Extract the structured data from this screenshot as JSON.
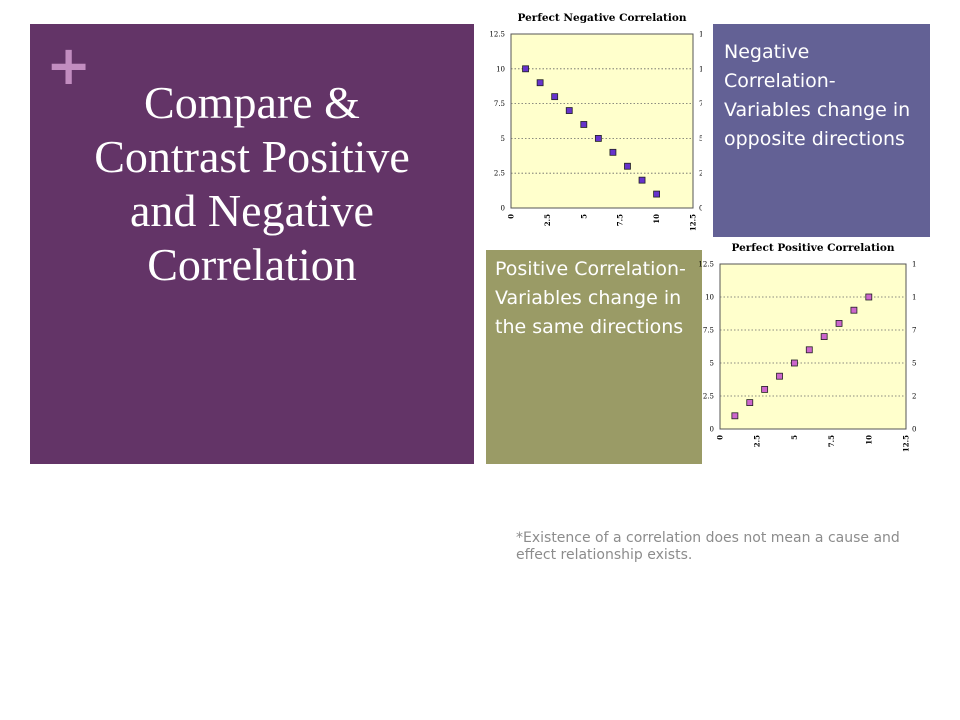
{
  "slide": {
    "plus": "+",
    "title": "Compare & Contrast Positive and Negative Correlation",
    "negative_text": "Negative Correlation- Variables change in opposite directions",
    "positive_text": "Positive Correlation- Variables change in the same directions",
    "footnote": "*Existence of a correlation does not mean a cause and effect relationship exists."
  },
  "colors": {
    "title_panel": "#633467",
    "negative_box": "#636195",
    "positive_box": "#9a9b66",
    "plot_bg": "#ffffcc",
    "marker": "#6633cc",
    "marker_alt": "#cc66cc"
  },
  "chart_data": [
    {
      "type": "scatter",
      "title": "Perfect Negative Correlation",
      "x": [
        1,
        2,
        3,
        4,
        5,
        6,
        7,
        8,
        9,
        10
      ],
      "y": [
        10,
        9,
        8,
        7,
        6,
        5,
        4,
        3,
        2,
        1
      ],
      "xlim": [
        0,
        12.5
      ],
      "ylim": [
        0,
        12.5
      ],
      "xticks": [
        "0",
        "2.5",
        "5",
        "7.5",
        "10",
        "12.5"
      ],
      "yticks": [
        "0",
        "2.5",
        "5",
        "7.5",
        "10",
        "12.5"
      ],
      "right_yticks": true,
      "grid": "horizontal dotted"
    },
    {
      "type": "scatter",
      "title": "Perfect Positive Correlation",
      "x": [
        1,
        2,
        3,
        4,
        5,
        6,
        7,
        8,
        9,
        10
      ],
      "y": [
        1,
        2,
        3,
        4,
        5,
        6,
        7,
        8,
        9,
        10
      ],
      "xlim": [
        0,
        12.5
      ],
      "ylim": [
        0,
        12.5
      ],
      "xticks": [
        "0",
        "2.5",
        "5",
        "7.5",
        "10",
        "12.5"
      ],
      "yticks": [
        "0",
        "2.5",
        "5",
        "7.5",
        "10",
        "12.5"
      ],
      "right_yticks": true,
      "grid": "horizontal dotted"
    }
  ]
}
